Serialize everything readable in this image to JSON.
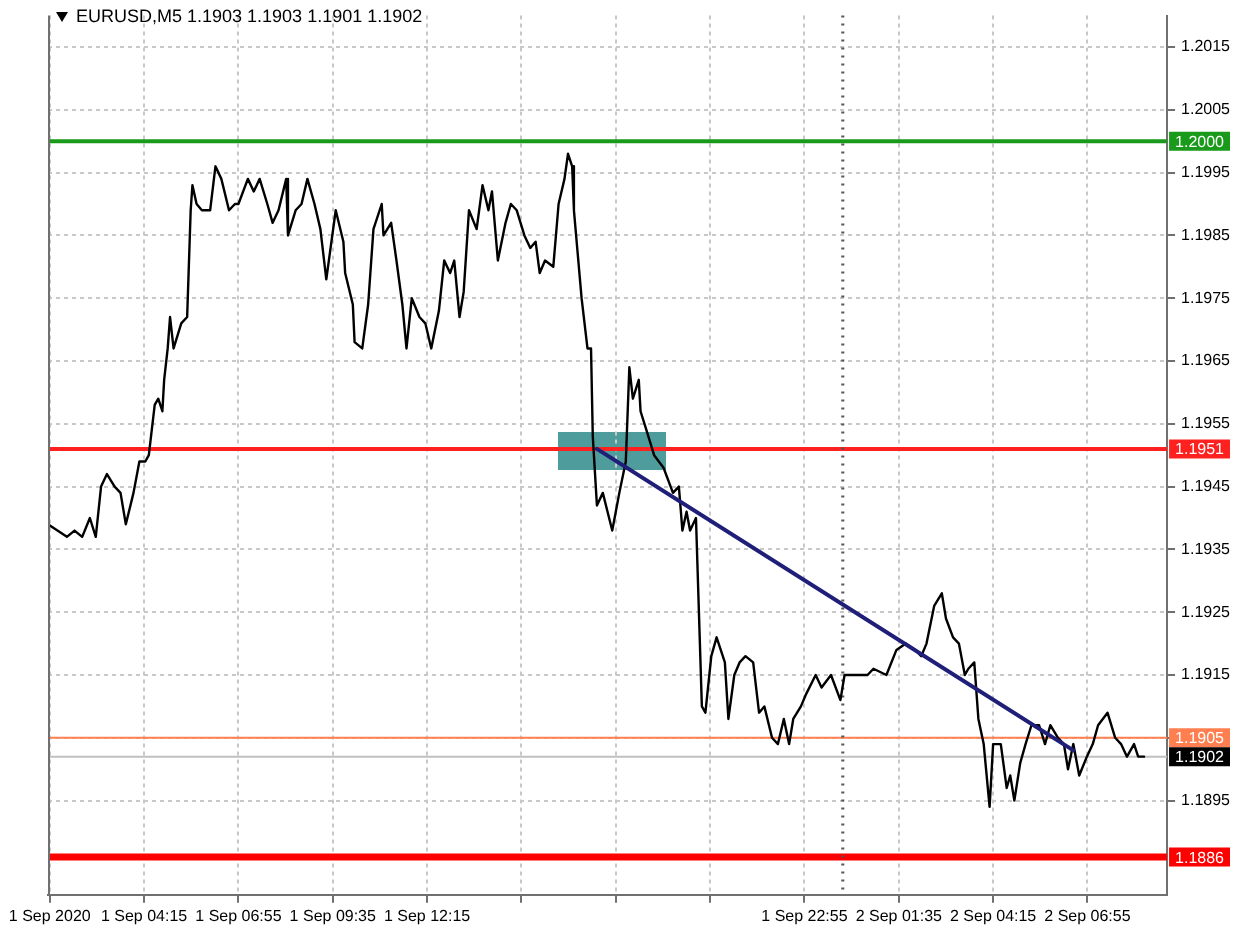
{
  "chart_data": {
    "type": "line",
    "title": "EURUSD,M5 1.1903 1.1903 1.1901 1.1902",
    "series": [
      {
        "color": "#000000",
        "x": [
          "2020-09-01T01:32",
          "2020-09-01T01:48",
          "2020-09-01T02:04",
          "2020-09-01T02:17",
          "2020-09-01T02:30",
          "2020-09-01T02:43",
          "2020-09-01T02:53",
          "2020-09-01T03:02",
          "2020-09-01T03:12",
          "2020-09-01T03:25",
          "2020-09-01T03:35",
          "2020-09-01T03:44",
          "2020-09-01T03:57",
          "2020-09-01T04:07",
          "2020-09-01T04:17",
          "2020-09-01T04:23",
          "2020-09-01T04:33",
          "2020-09-01T04:39",
          "2020-09-01T04:46",
          "2020-09-01T04:49",
          "2020-09-01T04:55",
          "2020-09-01T04:59",
          "2020-09-01T05:05",
          "2020-09-01T05:18",
          "2020-09-01T05:28",
          "2020-09-01T05:34",
          "2020-09-01T05:37",
          "2020-09-01T05:44",
          "2020-09-01T05:53",
          "2020-09-01T06:07",
          "2020-09-01T06:16",
          "2020-09-01T06:26",
          "2020-09-01T06:39",
          "2020-09-01T06:49",
          "2020-09-01T06:55",
          "2020-09-01T07:11",
          "2020-09-01T07:21",
          "2020-09-01T07:31",
          "2020-09-01T07:44",
          "2020-09-01T07:53",
          "2020-09-01T08:03",
          "2020-09-01T08:16",
          "2020-09-01T08:19",
          "2020-09-01T08:32",
          "2020-09-01T08:42",
          "2020-09-01T08:52",
          "2020-09-01T09:04",
          "2020-09-01T09:14",
          "2020-09-01T09:24",
          "2020-09-01T09:40",
          "2020-09-01T09:53",
          "2020-09-01T09:56",
          "2020-09-01T10:09",
          "2020-09-01T10:12",
          "2020-09-01T10:25",
          "2020-09-01T10:35",
          "2020-09-01T10:44",
          "2020-09-01T10:58",
          "2020-09-01T11:01",
          "2020-09-01T11:14",
          "2020-09-01T11:23",
          "2020-09-01T11:33",
          "2020-09-01T11:40",
          "2020-09-01T11:49",
          "2020-09-01T12:02",
          "2020-09-01T12:12",
          "2020-09-01T12:22",
          "2020-09-01T12:35",
          "2020-09-01T12:44",
          "2020-09-01T12:54",
          "2020-09-01T13:01",
          "2020-09-01T13:10",
          "2020-09-01T13:17",
          "2020-09-01T13:26",
          "2020-09-01T13:39",
          "2020-09-01T13:49",
          "2020-09-01T13:59",
          "2020-09-01T14:05",
          "2020-09-01T14:15",
          "2020-09-01T14:28",
          "2020-09-01T14:37",
          "2020-09-01T14:47",
          "2020-09-01T15:00",
          "2020-09-01T15:10",
          "2020-09-01T15:19",
          "2020-09-01T15:26",
          "2020-09-01T15:35",
          "2020-09-01T15:49",
          "2020-09-01T15:58",
          "2020-09-01T16:08",
          "2020-09-01T16:14",
          "2020-09-01T16:21",
          "2020-09-01T16:24",
          "2020-09-01T16:37",
          "2020-09-01T16:47",
          "2020-09-01T16:53",
          "2020-09-01T16:56",
          "2020-09-01T17:03",
          "2020-09-01T17:13",
          "2020-09-01T17:29",
          "2020-09-01T17:41",
          "2020-09-01T17:52",
          "2020-09-01T17:58",
          "2020-09-01T18:04",
          "2020-09-01T18:14",
          "2020-09-01T18:17",
          "2020-09-01T18:27",
          "2020-09-01T18:40",
          "2020-09-01T18:56",
          "2020-09-01T19:12",
          "2020-09-01T19:22",
          "2020-09-01T19:28",
          "2020-09-01T19:35",
          "2020-09-01T19:41",
          "2020-09-01T19:51",
          "2020-09-01T20:01",
          "2020-09-01T20:07",
          "2020-09-01T20:17",
          "2020-09-01T20:26",
          "2020-09-01T20:40",
          "2020-09-01T20:46",
          "2020-09-01T20:56",
          "2020-09-01T21:05",
          "2020-09-01T21:15",
          "2020-09-01T21:28",
          "2020-09-01T21:38",
          "2020-09-01T21:47",
          "2020-09-01T22:00",
          "2020-09-01T22:10",
          "2020-09-01T22:20",
          "2020-09-01T22:29",
          "2020-09-01T22:36",
          "2020-09-01T22:49",
          "2020-09-01T22:58",
          "2020-09-01T23:14",
          "2020-09-01T23:24",
          "2020-09-01T23:40",
          "2020-09-01T23:56",
          "2020-09-02T00:03",
          "2020-09-02T00:13",
          "2020-09-02T00:26",
          "2020-09-02T00:42",
          "2020-09-02T00:52",
          "2020-09-02T01:14",
          "2020-09-02T01:31",
          "2020-09-02T01:47",
          "2020-09-02T02:03",
          "2020-09-02T02:13",
          "2020-09-02T02:22",
          "2020-09-02T02:35",
          "2020-09-02T02:48",
          "2020-09-02T02:55",
          "2020-09-02T03:07",
          "2020-09-02T03:17",
          "2020-09-02T03:27",
          "2020-09-02T03:33",
          "2020-09-02T03:43",
          "2020-09-02T03:50",
          "2020-09-02T03:59",
          "2020-09-02T04:09",
          "2020-09-02T04:15",
          "2020-09-02T04:28",
          "2020-09-02T04:38",
          "2020-09-02T04:44",
          "2020-09-02T04:51",
          "2020-09-02T05:01",
          "2020-09-02T05:10",
          "2020-09-02T05:20",
          "2020-09-02T05:33",
          "2020-09-02T05:43",
          "2020-09-02T05:52",
          "2020-09-02T06:05",
          "2020-09-02T06:15",
          "2020-09-02T06:22",
          "2020-09-02T06:31",
          "2020-09-02T06:41",
          "2020-09-02T06:54",
          "2020-09-02T07:04",
          "2020-09-02T07:13",
          "2020-09-02T07:29",
          "2020-09-02T07:42",
          "2020-09-02T07:52",
          "2020-09-02T08:02",
          "2020-09-02T08:14",
          "2020-09-02T08:21",
          "2020-09-02T08:31"
        ],
        "values": [
          1.1939,
          1.1938,
          1.1937,
          1.1938,
          1.1937,
          1.194,
          1.1937,
          1.1945,
          1.1947,
          1.1945,
          1.1944,
          1.1939,
          1.1944,
          1.1949,
          1.1949,
          1.195,
          1.1958,
          1.1959,
          1.1957,
          1.1962,
          1.1967,
          1.1972,
          1.1967,
          1.1971,
          1.1972,
          1.1989,
          1.1993,
          1.199,
          1.1989,
          1.1989,
          1.1996,
          1.1994,
          1.1989,
          1.199,
          1.199,
          1.1994,
          1.1992,
          1.1994,
          1.199,
          1.1987,
          1.1989,
          1.1994,
          1.1985,
          1.1989,
          1.199,
          1.1994,
          1.199,
          1.1986,
          1.1978,
          1.1989,
          1.1984,
          1.1979,
          1.1974,
          1.1968,
          1.1967,
          1.1974,
          1.1986,
          1.199,
          1.1985,
          1.1987,
          1.1981,
          1.1974,
          1.1967,
          1.1975,
          1.1972,
          1.1971,
          1.1967,
          1.1973,
          1.1981,
          1.1979,
          1.1981,
          1.1972,
          1.1976,
          1.1989,
          1.1986,
          1.1993,
          1.1989,
          1.1992,
          1.1981,
          1.1987,
          1.199,
          1.1989,
          1.1985,
          1.1983,
          1.1984,
          1.1979,
          1.1981,
          1.198,
          1.199,
          1.1994,
          1.1998,
          1.1996,
          1.1989,
          1.1975,
          1.1967,
          1.1967,
          1.1953,
          1.1942,
          1.1944,
          1.1938,
          1.1944,
          1.1949,
          1.1964,
          1.1959,
          1.1962,
          1.1957,
          1.1954,
          1.195,
          1.1948,
          1.1944,
          1.1945,
          1.1938,
          1.1941,
          1.1938,
          1.194,
          1.191,
          1.1909,
          1.1918,
          1.1921,
          1.1917,
          1.1908,
          1.1915,
          1.1917,
          1.1918,
          1.1917,
          1.1909,
          1.191,
          1.1905,
          1.1904,
          1.1908,
          1.1904,
          1.1908,
          1.191,
          1.1912,
          1.1915,
          1.1913,
          1.1915,
          1.1911,
          1.1915,
          1.1915,
          1.1915,
          1.1915,
          1.1916,
          1.1915,
          1.1919,
          1.192,
          1.1919,
          1.1918,
          1.192,
          1.1926,
          1.1928,
          1.1924,
          1.1921,
          1.192,
          1.1915,
          1.1916,
          1.1917,
          1.1908,
          1.1904,
          1.1894,
          1.1904,
          1.1904,
          1.1897,
          1.1899,
          1.1895,
          1.1901,
          1.1904,
          1.1907,
          1.1907,
          1.1904,
          1.1907,
          1.1905,
          1.1904,
          1.19,
          1.1904,
          1.1899,
          1.1902,
          1.1904,
          1.1907,
          1.1909,
          1.1905,
          1.1904,
          1.1902,
          1.1904,
          1.1902,
          1.1902
        ]
      },
      {
        "type": "line",
        "color": "#1f1f7a",
        "x": [
          "2020-09-01T17:03",
          "2020-09-02T06:31"
        ],
        "values": [
          1.1951,
          1.1903
        ]
      }
    ],
    "xlim": [
      "2020-09-01T01:32",
      "2020-09-02T09:10"
    ],
    "ylim": [
      1.188,
      1.202
    ],
    "xticks": [
      {
        "value": "2020-09-01T01:35",
        "label": "1 Sep 2020"
      },
      {
        "value": "2020-09-01T04:15",
        "label": "1 Sep 04:15"
      },
      {
        "value": "2020-09-01T06:55",
        "label": "1 Sep 06:55"
      },
      {
        "value": "2020-09-01T09:35",
        "label": "1 Sep 09:35"
      },
      {
        "value": "2020-09-01T12:15",
        "label": "1 Sep 12:15"
      },
      {
        "value": "2020-09-01T14:55",
        "label": null
      },
      {
        "value": "2020-09-01T17:35",
        "label": null
      },
      {
        "value": "2020-09-01T20:15",
        "label": null
      },
      {
        "value": "2020-09-01T22:55",
        "label": "1 Sep 22:55"
      },
      {
        "value": "2020-09-02T01:35",
        "label": "2 Sep 01:35"
      },
      {
        "value": "2020-09-02T04:15",
        "label": "2 Sep 04:15"
      },
      {
        "value": "2020-09-02T06:55",
        "label": "2 Sep 06:55"
      }
    ],
    "yticks": [
      1.1895,
      {
        "value": 1.1905,
        "label": null
      },
      1.1915,
      1.1925,
      1.1935,
      1.1945,
      1.1955,
      1.1965,
      1.1975,
      1.1985,
      1.1995,
      1.2005,
      1.2015
    ],
    "ref_lines": [
      {
        "axis": "y",
        "value": 1.2,
        "label": "1.2000",
        "color": "#1a9a1a"
      },
      {
        "axis": "y",
        "value": 1.1951,
        "label": "1.1951",
        "color": "#ff2020"
      },
      {
        "axis": "y",
        "value": 1.1905,
        "label": "1.1905",
        "color": "#ff7f50"
      },
      {
        "axis": "y",
        "value": 1.1902,
        "label": "1.1902",
        "color": "#c0c0c0"
      },
      {
        "axis": "y",
        "value": 1.1886,
        "label": "1.1886",
        "color": "#ff0000"
      },
      {
        "axis": "x",
        "value": "2020-09-02T00:00",
        "color": "#555555",
        "line_style": "dotted"
      }
    ],
    "grid": true,
    "marker": "none"
  }
}
